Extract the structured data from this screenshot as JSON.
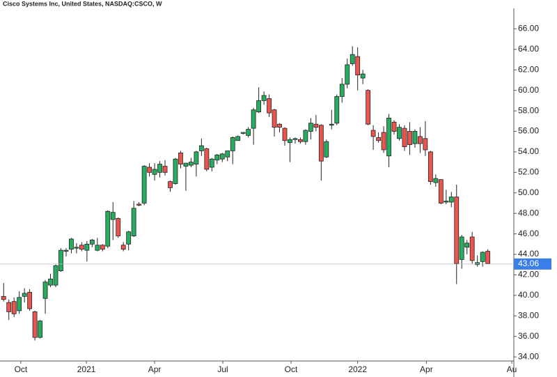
{
  "chart_data": {
    "type": "candlestick",
    "title": "Cisco Systems Inc, United States, NASDAQ:CSCO, W",
    "x": [
      0,
      1,
      2,
      3,
      4,
      5,
      6,
      7,
      8,
      9,
      10,
      11,
      12,
      13,
      14,
      15,
      16,
      17,
      18,
      19,
      20,
      21,
      22,
      23,
      24,
      25,
      26,
      27,
      28,
      29,
      30,
      31,
      32,
      33,
      34,
      35,
      36,
      37,
      38,
      39,
      40,
      41,
      42,
      43,
      44,
      45,
      46,
      47,
      48,
      49,
      50,
      51,
      52,
      53,
      54,
      55,
      56,
      57,
      58,
      59,
      60,
      61,
      62,
      63,
      64,
      65,
      66,
      67,
      68,
      69,
      70,
      71,
      72,
      73,
      74,
      75,
      76,
      77,
      78,
      79,
      80,
      81,
      82,
      83,
      84,
      85,
      86,
      87,
      88,
      89,
      90,
      91,
      92,
      93
    ],
    "open": [
      39.9,
      39.3,
      39.4,
      38.5,
      39.9,
      40.3,
      38.4,
      35.9,
      39.7,
      41.0,
      41.0,
      42.4,
      44.3,
      44.5,
      44.6,
      44.9,
      44.4,
      45.0,
      44.4,
      44.9,
      44.8,
      47.4,
      47.5,
      44.9,
      45.0,
      45.8,
      48.9,
      49.0,
      52.5,
      51.8,
      52.0,
      52.6,
      51.1,
      50.9,
      53.9,
      52.6,
      52.7,
      52.8,
      54.1,
      54.3,
      52.5,
      53.2,
      53.3,
      53.5,
      54.1,
      55.1,
      55.8,
      55.6,
      56.3,
      57.9,
      59.0,
      59.2,
      58.1,
      56.7,
      56.3,
      54.9,
      55.2,
      55.2,
      55.0,
      56.0,
      56.7,
      56.6,
      53.5,
      56.6,
      56.8,
      59.4,
      60.6,
      62.6,
      63.3,
      61.2,
      60.0,
      56.1,
      55.4,
      55.9,
      53.6,
      56.9,
      55.3,
      56.3,
      56.0,
      54.8,
      55.5,
      55.3,
      54.0,
      51.0,
      51.3,
      49.1,
      49.1,
      49.6,
      43.5,
      44.7,
      45.7,
      43.0,
      43.3,
      44.3
    ],
    "high": [
      41.2,
      39.6,
      39.8,
      40.4,
      40.7,
      40.6,
      38.5,
      37.6,
      41.5,
      42.1,
      43.0,
      44.6,
      44.6,
      45.6,
      45.1,
      45.2,
      45.3,
      45.5,
      45.6,
      45.0,
      48.3,
      49.1,
      47.6,
      45.2,
      46.3,
      49.2,
      49.1,
      52.7,
      52.9,
      52.9,
      53.1,
      53.2,
      51.2,
      53.4,
      54.1,
      52.9,
      53.4,
      54.1,
      55.3,
      54.4,
      53.4,
      53.8,
      53.9,
      54.1,
      55.5,
      55.6,
      55.9,
      56.4,
      58.3,
      60.3,
      59.9,
      59.6,
      58.2,
      56.8,
      56.4,
      55.4,
      55.4,
      55.4,
      56.2,
      57.3,
      57.6,
      56.7,
      55.2,
      58.1,
      59.6,
      61.2,
      63.1,
      64.3,
      64.2,
      62.0,
      60.1,
      56.6,
      55.9,
      56.5,
      57.7,
      57.1,
      56.7,
      56.6,
      56.9,
      56.2,
      56.4,
      57.0,
      54.1,
      51.8,
      51.3,
      50.3,
      50.1,
      50.8,
      45.9,
      45.4,
      46.2,
      43.9,
      44.3,
      44.5
    ],
    "low": [
      39.4,
      37.6,
      37.9,
      38.2,
      39.3,
      38.5,
      35.6,
      35.8,
      38.2,
      40.8,
      40.8,
      42.3,
      43.8,
      44.1,
      44.1,
      44.3,
      43.3,
      44.7,
      44.3,
      44.3,
      44.6,
      45.4,
      45.6,
      44.3,
      44.4,
      45.7,
      48.7,
      48.8,
      51.6,
      51.2,
      51.5,
      51.7,
      50.1,
      50.8,
      52.4,
      50.2,
      52.5,
      51.6,
      53.6,
      52.1,
      52.1,
      52.8,
      53.0,
      53.1,
      52.8,
      55.1,
      55.7,
      55.4,
      54.7,
      57.8,
      58.6,
      57.4,
      55.5,
      55.9,
      54.6,
      53.0,
      54.8,
      54.8,
      54.7,
      55.2,
      56.0,
      51.2,
      53.4,
      56.2,
      56.6,
      58.8,
      60.2,
      62.4,
      60.0,
      60.6,
      56.6,
      54.2,
      54.9,
      53.9,
      52.5,
      55.7,
      55.1,
      54.1,
      53.7,
      54.4,
      53.9,
      53.6,
      50.8,
      50.6,
      48.9,
      48.9,
      48.6,
      41.1,
      42.6,
      44.0,
      43.1,
      42.8,
      42.8,
      43.1
    ],
    "close": [
      39.6,
      38.4,
      38.2,
      39.8,
      40.2,
      38.7,
      35.9,
      37.5,
      41.3,
      41.6,
      42.9,
      44.4,
      44.4,
      45.5,
      44.7,
      44.5,
      45.0,
      45.4,
      44.9,
      44.5,
      48.2,
      48.1,
      45.8,
      44.5,
      46.2,
      48.5,
      48.8,
      52.6,
      52.0,
      52.3,
      52.8,
      52.0,
      50.5,
      53.3,
      52.8,
      52.9,
      53.0,
      54.0,
      54.6,
      52.3,
      53.3,
      53.7,
      53.8,
      54.1,
      55.4,
      55.5,
      55.9,
      56.2,
      58.1,
      59.0,
      59.5,
      57.8,
      56.4,
      56.4,
      55.1,
      55.2,
      55.3,
      55.0,
      56.1,
      56.8,
      56.4,
      53.1,
      55.0,
      56.7,
      59.4,
      60.6,
      62.5,
      63.5,
      61.5,
      61.6,
      56.7,
      55.5,
      55.1,
      54.2,
      57.3,
      56.0,
      56.4,
      54.5,
      54.7,
      56.0,
      54.8,
      54.2,
      51.1,
      51.4,
      49.0,
      49.2,
      49.6,
      43.1,
      45.7,
      45.1,
      43.4,
      43.2,
      44.2,
      43.1
    ],
    "up_color": "#26ad5f",
    "down_color": "#ea5550",
    "last_price": 43.06,
    "last_color": "#3a7ee8",
    "xlim": [
      -0.7,
      98
    ],
    "xticks": [
      {
        "value": 3.3,
        "label": "Oct"
      },
      {
        "value": 15.9,
        "label": "2021"
      },
      {
        "value": 29.0,
        "label": "Apr"
      },
      {
        "value": 42.1,
        "label": "Jul"
      },
      {
        "value": 55.2,
        "label": "Oct"
      },
      {
        "value": 68.0,
        "label": "2022"
      },
      {
        "value": 81.2,
        "label": "Apr"
      },
      {
        "value": 97.6,
        "label": "Au"
      }
    ],
    "ylim": [
      33.6,
      68.0
    ],
    "yticks": [
      {
        "value": 34,
        "label": "34.00"
      },
      {
        "value": 36,
        "label": "36.00"
      },
      {
        "value": 38,
        "label": "38.00"
      },
      {
        "value": 40,
        "label": "40.00"
      },
      {
        "value": 42,
        "label": "42.00"
      },
      {
        "value": 44,
        "label": "44.00"
      },
      {
        "value": 46,
        "label": "46.00"
      },
      {
        "value": 48,
        "label": "48.00"
      },
      {
        "value": 50,
        "label": "50.00"
      },
      {
        "value": 52,
        "label": "52.00"
      },
      {
        "value": 54,
        "label": "54.00"
      },
      {
        "value": 56,
        "label": "56.00"
      },
      {
        "value": 58,
        "label": "58.00"
      },
      {
        "value": 60,
        "label": "60.00"
      },
      {
        "value": 62,
        "label": "62.00"
      },
      {
        "value": 64,
        "label": "64.00"
      },
      {
        "value": 66,
        "label": "66.00"
      }
    ]
  }
}
